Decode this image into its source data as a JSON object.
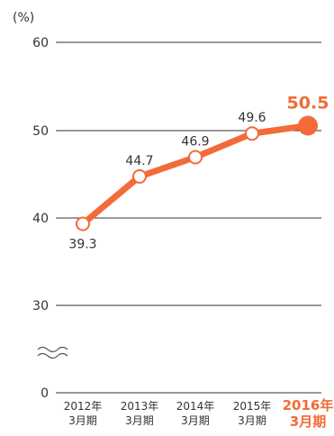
{
  "chart_data": {
    "type": "line",
    "unit_label": "(%)",
    "categories": [
      [
        "2012年",
        "3月期"
      ],
      [
        "2013年",
        "3月期"
      ],
      [
        "2014年",
        "3月期"
      ],
      [
        "2015年",
        "3月期"
      ],
      [
        "2016年",
        "3月期"
      ]
    ],
    "values": [
      39.3,
      44.7,
      46.9,
      49.6,
      50.5
    ],
    "value_labels": [
      "39.3",
      "44.7",
      "46.9",
      "49.6",
      "50.5"
    ],
    "highlight_index": 4,
    "yticks": [
      "60",
      "50",
      "40",
      "30",
      "0"
    ],
    "ylim": [
      30,
      60
    ],
    "axis_break": true,
    "grid": true,
    "line_color": "#f26b38",
    "highlight_color": "#f26b38"
  }
}
